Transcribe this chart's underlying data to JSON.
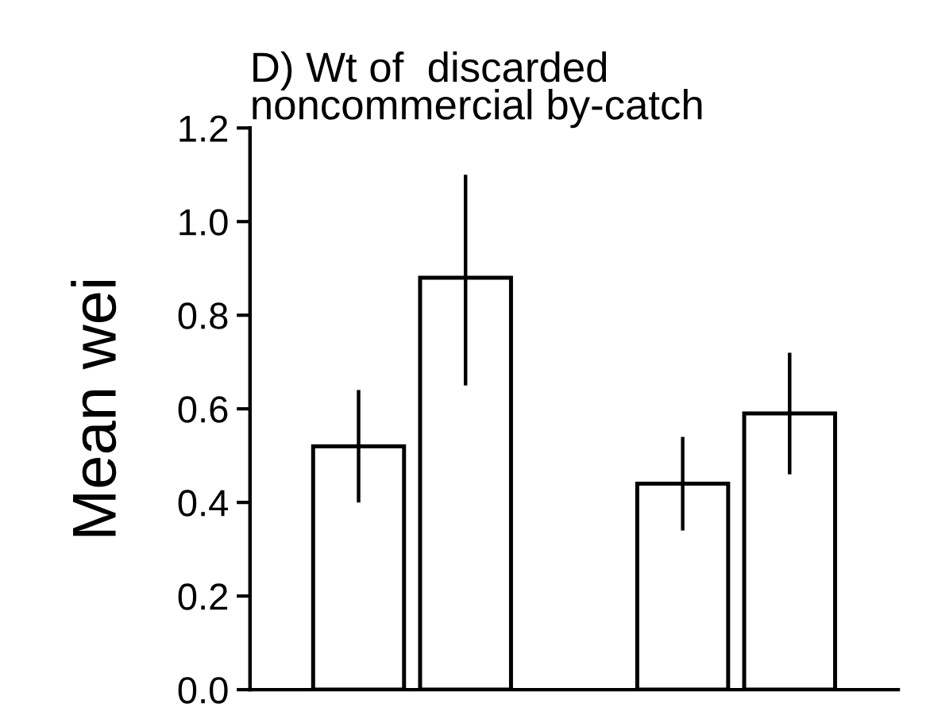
{
  "chart_data": {
    "type": "bar",
    "title": "D) Wt of  discarded\nnoncommercial by-catch",
    "ylabel": "Mean wei",
    "categories": [
      null,
      null
    ],
    "series": [
      {
        "color": "#ffffff",
        "values": [
          0.52,
          0.44
        ],
        "errors": [
          [
            0.4,
            0.64
          ],
          [
            0.34,
            0.54
          ]
        ]
      },
      {
        "color": "#ffffff",
        "values": [
          0.88,
          0.59
        ],
        "errors": [
          [
            0.65,
            1.1
          ],
          [
            0.46,
            0.72
          ]
        ]
      }
    ],
    "ylim": [
      0,
      1.2
    ],
    "yticks": [
      {
        "value": 0,
        "label": "0.0"
      },
      0.2,
      0.4,
      0.6,
      0.8,
      {
        "value": 1,
        "label": "1.0"
      },
      1.2
    ],
    "grid": false,
    "legend": false,
    "tick_labels": "y"
  }
}
